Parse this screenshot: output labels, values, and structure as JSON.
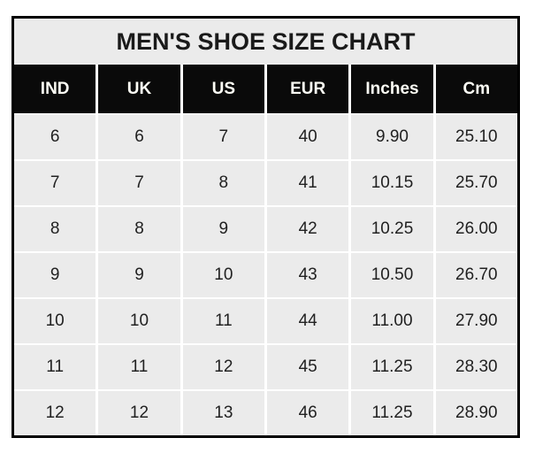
{
  "title": "MEN'S SHOE SIZE CHART",
  "colors": {
    "outer_border": "#000000",
    "title_background": "#ebebeb",
    "header_background": "#0a0a0a",
    "header_text": "#fdfdf5",
    "cell_background": "#ebebeb",
    "cell_text": "#212121",
    "separator": "#ffffff"
  },
  "chart_data": {
    "type": "table",
    "title": "MEN'S SHOE SIZE CHART",
    "columns": [
      "IND",
      "UK",
      "US",
      "EUR",
      "Inches",
      "Cm"
    ],
    "rows": [
      [
        "6",
        "6",
        "7",
        "40",
        "9.90",
        "25.10"
      ],
      [
        "7",
        "7",
        "8",
        "41",
        "10.15",
        "25.70"
      ],
      [
        "8",
        "8",
        "9",
        "42",
        "10.25",
        "26.00"
      ],
      [
        "9",
        "9",
        "10",
        "43",
        "10.50",
        "26.70"
      ],
      [
        "10",
        "10",
        "11",
        "44",
        "11.00",
        "27.90"
      ],
      [
        "11",
        "11",
        "12",
        "45",
        "11.25",
        "28.30"
      ],
      [
        "12",
        "12",
        "13",
        "46",
        "11.25",
        "28.90"
      ]
    ]
  }
}
